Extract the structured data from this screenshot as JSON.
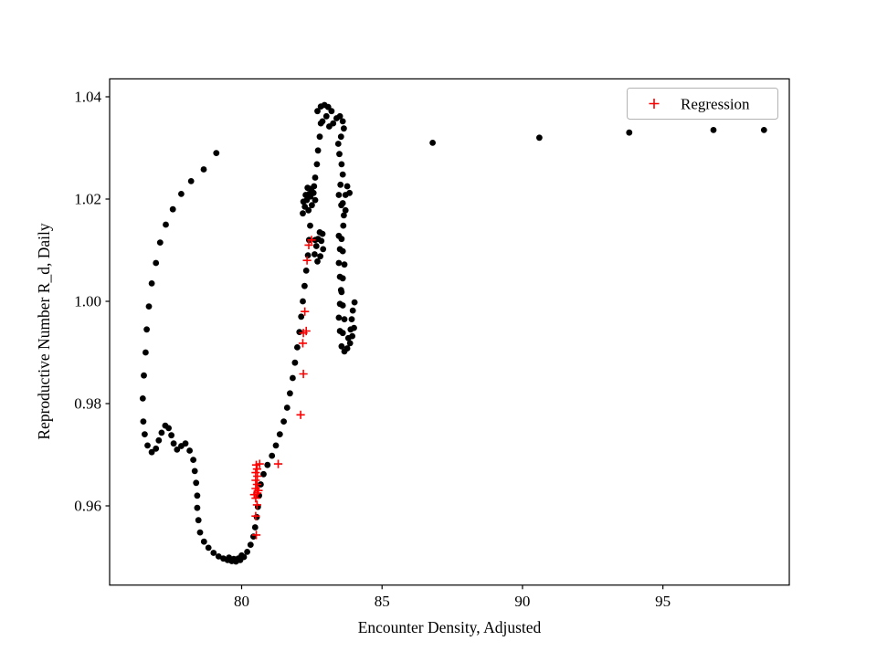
{
  "chart_data": {
    "type": "scatter",
    "title": "",
    "xlabel": "Encounter Density, Adjusted",
    "ylabel": "Reproductive Number R_d, Daily",
    "xlim": [
      75.3,
      99.5
    ],
    "ylim": [
      0.9445,
      1.0435
    ],
    "grid": false,
    "legend_position": "upper right",
    "xticks": [
      {
        "v": 80,
        "label": "80"
      },
      {
        "v": 85,
        "label": "85"
      },
      {
        "v": 90,
        "label": "90"
      },
      {
        "v": 95,
        "label": "95"
      }
    ],
    "yticks": [
      {
        "v": 0.96,
        "label": "0.96"
      },
      {
        "v": 0.98,
        "label": "0.98"
      },
      {
        "v": 1.0,
        "label": "1.00"
      },
      {
        "v": 1.02,
        "label": "1.02"
      },
      {
        "v": 1.04,
        "label": "1.04"
      }
    ],
    "series": [
      {
        "name": "",
        "marker": "circle",
        "color": "#000000",
        "in_legend": false,
        "points": [
          [
            76.5,
            0.9765
          ],
          [
            76.48,
            0.981
          ],
          [
            76.52,
            0.9855
          ],
          [
            76.58,
            0.99
          ],
          [
            76.62,
            0.9945
          ],
          [
            76.7,
            0.999
          ],
          [
            76.8,
            1.0035
          ],
          [
            76.95,
            1.0075
          ],
          [
            77.1,
            1.0115
          ],
          [
            77.3,
            1.015
          ],
          [
            77.55,
            1.018
          ],
          [
            77.85,
            1.021
          ],
          [
            78.2,
            1.0235
          ],
          [
            78.65,
            1.0258
          ],
          [
            79.1,
            1.029
          ],
          [
            76.55,
            0.974
          ],
          [
            76.65,
            0.9718
          ],
          [
            76.8,
            0.9705
          ],
          [
            76.95,
            0.9712
          ],
          [
            77.05,
            0.9728
          ],
          [
            77.15,
            0.9743
          ],
          [
            77.28,
            0.9757
          ],
          [
            77.4,
            0.9752
          ],
          [
            77.5,
            0.9738
          ],
          [
            77.58,
            0.9722
          ],
          [
            77.7,
            0.971
          ],
          [
            77.85,
            0.9717
          ],
          [
            78.0,
            0.9722
          ],
          [
            78.15,
            0.9708
          ],
          [
            78.28,
            0.969
          ],
          [
            78.33,
            0.9668
          ],
          [
            78.38,
            0.9645
          ],
          [
            78.42,
            0.962
          ],
          [
            78.42,
            0.9596
          ],
          [
            78.46,
            0.9572
          ],
          [
            78.52,
            0.9548
          ],
          [
            78.66,
            0.953
          ],
          [
            78.82,
            0.9518
          ],
          [
            79.0,
            0.9508
          ],
          [
            79.18,
            0.9501
          ],
          [
            79.35,
            0.9497
          ],
          [
            79.5,
            0.9494
          ],
          [
            79.65,
            0.9492
          ],
          [
            79.8,
            0.9491
          ],
          [
            79.95,
            0.9494
          ],
          [
            80.08,
            0.95
          ],
          [
            80.2,
            0.951
          ],
          [
            80.32,
            0.9524
          ],
          [
            80.42,
            0.954
          ],
          [
            79.55,
            0.9499
          ],
          [
            79.72,
            0.9496
          ],
          [
            79.88,
            0.9497
          ],
          [
            80.0,
            0.9503
          ],
          [
            80.48,
            0.9558
          ],
          [
            80.54,
            0.9578
          ],
          [
            80.58,
            0.9598
          ],
          [
            80.62,
            0.962
          ],
          [
            80.68,
            0.9642
          ],
          [
            80.78,
            0.9662
          ],
          [
            80.92,
            0.968
          ],
          [
            81.08,
            0.9698
          ],
          [
            81.22,
            0.9718
          ],
          [
            81.36,
            0.974
          ],
          [
            81.5,
            0.9765
          ],
          [
            81.62,
            0.9792
          ],
          [
            81.72,
            0.982
          ],
          [
            81.82,
            0.985
          ],
          [
            81.9,
            0.988
          ],
          [
            81.98,
            0.991
          ],
          [
            82.06,
            0.994
          ],
          [
            82.12,
            0.997
          ],
          [
            82.18,
            1.0
          ],
          [
            82.24,
            1.003
          ],
          [
            82.3,
            1.006
          ],
          [
            82.36,
            1.009
          ],
          [
            82.4,
            1.012
          ],
          [
            82.44,
            1.0148
          ],
          [
            82.6,
            1.0092
          ],
          [
            82.66,
            1.0108
          ],
          [
            82.72,
            1.0122
          ],
          [
            82.78,
            1.0135
          ],
          [
            82.84,
            1.0118
          ],
          [
            82.9,
            1.0102
          ],
          [
            82.8,
            1.0088
          ],
          [
            82.7,
            1.0078
          ],
          [
            82.88,
            1.0132
          ],
          [
            82.62,
            1.012
          ],
          [
            82.18,
            1.0172
          ],
          [
            82.25,
            1.0185
          ],
          [
            82.32,
            1.0198
          ],
          [
            82.4,
            1.021
          ],
          [
            82.48,
            1.022
          ],
          [
            82.56,
            1.0212
          ],
          [
            82.62,
            1.0198
          ],
          [
            82.5,
            1.0188
          ],
          [
            82.38,
            1.0178
          ],
          [
            82.28,
            1.0208
          ],
          [
            82.45,
            1.0205
          ],
          [
            82.58,
            1.0225
          ],
          [
            82.2,
            1.0195
          ],
          [
            82.35,
            1.0222
          ],
          [
            82.62,
            1.0242
          ],
          [
            82.68,
            1.0268
          ],
          [
            82.72,
            1.0295
          ],
          [
            82.78,
            1.0322
          ],
          [
            82.82,
            1.0348
          ],
          [
            82.7,
            1.0372
          ],
          [
            82.82,
            1.0381
          ],
          [
            82.95,
            1.0384
          ],
          [
            83.08,
            1.038
          ],
          [
            83.2,
            1.0372
          ],
          [
            83.02,
            1.0362
          ],
          [
            82.88,
            1.0352
          ],
          [
            83.12,
            1.0342
          ],
          [
            83.26,
            1.0348
          ],
          [
            83.38,
            1.0358
          ],
          [
            83.5,
            1.0362
          ],
          [
            83.6,
            1.0352
          ],
          [
            83.64,
            1.0338
          ],
          [
            83.54,
            1.0322
          ],
          [
            83.44,
            1.0308
          ],
          [
            83.48,
            1.0288
          ],
          [
            83.56,
            1.0268
          ],
          [
            83.6,
            1.0248
          ],
          [
            83.52,
            1.0228
          ],
          [
            83.46,
            1.0208
          ],
          [
            83.55,
            1.0188
          ],
          [
            83.64,
            1.0168
          ],
          [
            83.6,
            1.0192
          ],
          [
            83.7,
            1.0208
          ],
          [
            83.76,
            1.0225
          ],
          [
            83.84,
            1.0212
          ],
          [
            83.7,
            1.0178
          ],
          [
            83.62,
            1.0148
          ],
          [
            83.56,
            1.0122
          ],
          [
            83.6,
            1.0098
          ],
          [
            83.66,
            1.0072
          ],
          [
            83.6,
            1.0045
          ],
          [
            83.56,
            1.0018
          ],
          [
            83.6,
            0.9992
          ],
          [
            83.66,
            0.9965
          ],
          [
            83.6,
            0.9938
          ],
          [
            83.56,
            0.9912
          ],
          [
            83.66,
            0.9902
          ],
          [
            83.76,
            0.9908
          ],
          [
            83.86,
            0.9918
          ],
          [
            83.94,
            0.9932
          ],
          [
            84.0,
            0.9948
          ],
          [
            83.92,
            0.9965
          ],
          [
            83.96,
            0.9982
          ],
          [
            84.02,
            0.9998
          ],
          [
            83.88,
            0.9945
          ],
          [
            83.8,
            0.9928
          ],
          [
            83.46,
            1.0128
          ],
          [
            83.5,
            1.0102
          ],
          [
            83.46,
            1.0075
          ],
          [
            83.5,
            1.0048
          ],
          [
            83.54,
            1.0022
          ],
          [
            83.5,
            0.9995
          ],
          [
            83.46,
            0.9968
          ],
          [
            83.5,
            0.9942
          ],
          [
            86.8,
            1.031
          ],
          [
            90.6,
            1.032
          ],
          [
            93.8,
            1.033
          ],
          [
            96.8,
            1.0335
          ],
          [
            98.6,
            1.0335
          ]
        ]
      },
      {
        "name": "Regression",
        "marker": "plus",
        "color": "#ff0000",
        "in_legend": true,
        "points": [
          [
            80.52,
            0.9543
          ],
          [
            80.5,
            0.958
          ],
          [
            80.55,
            0.9602
          ],
          [
            80.5,
            0.9615
          ],
          [
            80.56,
            0.9625
          ],
          [
            80.5,
            0.9634
          ],
          [
            80.55,
            0.9642
          ],
          [
            80.5,
            0.965
          ],
          [
            80.56,
            0.9658
          ],
          [
            80.5,
            0.9665
          ],
          [
            80.55,
            0.9672
          ],
          [
            80.52,
            0.968
          ],
          [
            80.64,
            0.9682
          ],
          [
            80.6,
            0.963
          ],
          [
            80.45,
            0.9622
          ],
          [
            81.3,
            0.9682
          ],
          [
            82.1,
            0.9778
          ],
          [
            82.2,
            0.9858
          ],
          [
            82.18,
            0.9918
          ],
          [
            82.2,
            0.9938
          ],
          [
            82.3,
            0.9942
          ],
          [
            82.25,
            0.998
          ],
          [
            82.33,
            1.008
          ],
          [
            82.39,
            1.011
          ],
          [
            82.49,
            1.012
          ]
        ]
      }
    ]
  }
}
